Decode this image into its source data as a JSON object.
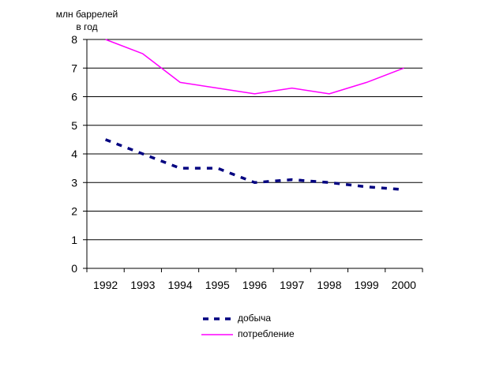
{
  "chart_data": {
    "type": "line",
    "ylabel_line1": "млн баррелей",
    "ylabel_line2": "в год",
    "categories": [
      "1992",
      "1993",
      "1994",
      "1995",
      "1996",
      "1997",
      "1998",
      "1999",
      "2000"
    ],
    "ylim": [
      0,
      8
    ],
    "yticks": [
      "0",
      "1",
      "2",
      "3",
      "4",
      "5",
      "6",
      "7",
      "8"
    ],
    "grid": true,
    "legend_position": "bottom",
    "series": [
      {
        "name": "добыча",
        "style": "dashed",
        "color": "#000080",
        "values": [
          4.5,
          4.0,
          3.5,
          3.5,
          3.0,
          3.1,
          3.0,
          2.85,
          2.75
        ]
      },
      {
        "name": "потребление",
        "style": "solid",
        "color": "#ff00ff",
        "values": [
          8.0,
          7.5,
          6.5,
          6.3,
          6.1,
          6.3,
          6.1,
          6.5,
          7.0
        ]
      }
    ]
  }
}
